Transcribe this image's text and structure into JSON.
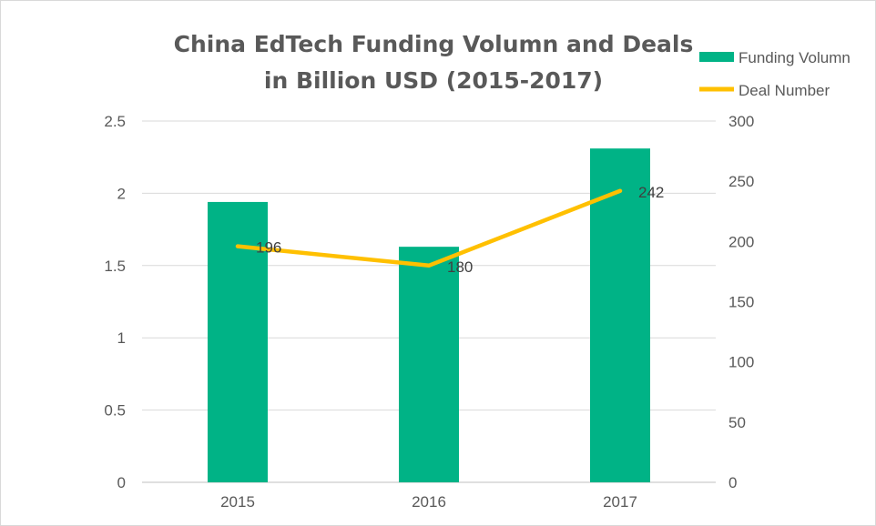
{
  "chart_data": {
    "type": "bar",
    "title_lines": [
      "China EdTech Funding Volumn and Deals",
      "in Billion USD (2015-2017)"
    ],
    "categories": [
      "2015",
      "2016",
      "2017"
    ],
    "series": [
      {
        "name": "Funding Volumn",
        "kind": "bar",
        "axis": "left",
        "color": "#00b386",
        "values": [
          1.94,
          1.63,
          2.31
        ]
      },
      {
        "name": "Deal Number",
        "kind": "line",
        "axis": "right",
        "color": "#ffc000",
        "values": [
          196,
          180,
          242
        ],
        "data_labels": [
          "196",
          "180",
          "242"
        ]
      }
    ],
    "y_left": {
      "min": 0,
      "max": 2.5,
      "ticks": [
        "0",
        "0.5",
        "1",
        "1.5",
        "2",
        "2.5"
      ]
    },
    "y_right": {
      "min": 0,
      "max": 300,
      "ticks": [
        "0",
        "50",
        "100",
        "150",
        "200",
        "250",
        "300"
      ]
    },
    "grid": true,
    "legend_position": "top-right"
  }
}
